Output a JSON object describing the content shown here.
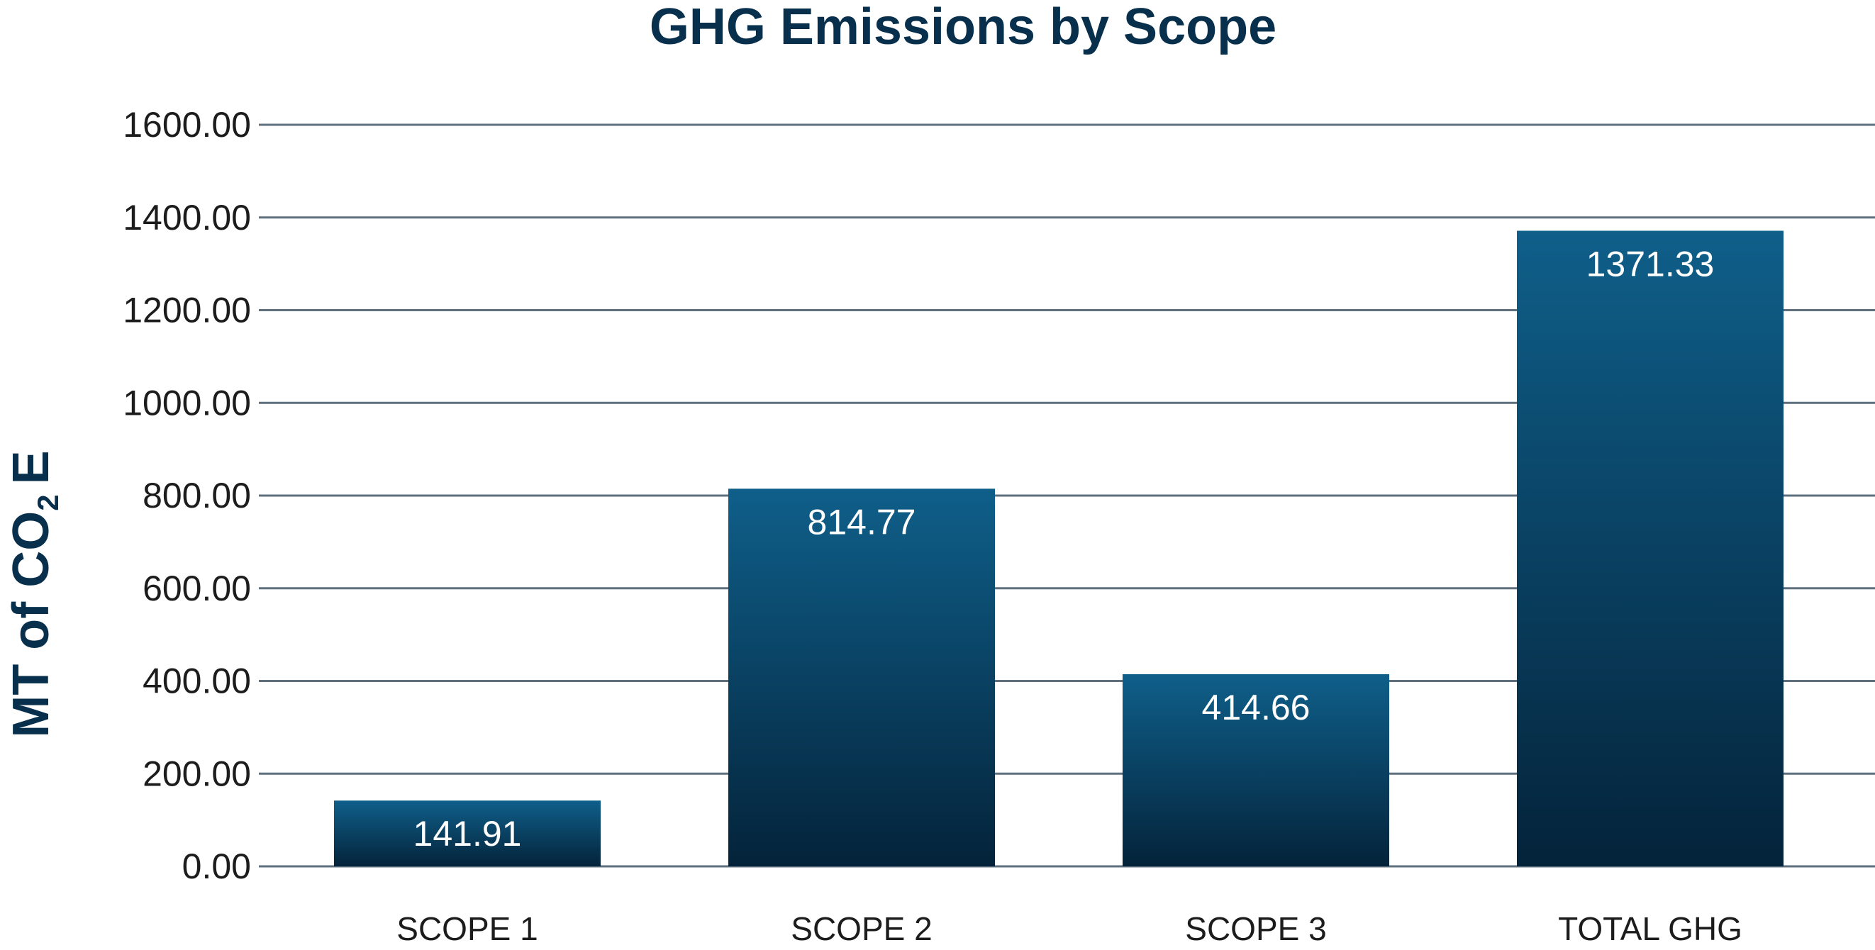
{
  "chart_data": {
    "type": "bar",
    "title": "GHG Emissions by Scope",
    "ylabel": "MT of CO",
    "ylabel_subscript": "2",
    "ylabel_suffix": "E",
    "xlabel": "",
    "categories": [
      "SCOPE 1",
      "SCOPE 2",
      "SCOPE 3",
      "TOTAL GHG"
    ],
    "values": [
      141.91,
      814.77,
      414.66,
      1371.33
    ],
    "value_labels": [
      "141.91",
      "814.77",
      "414.66",
      "1371.33"
    ],
    "ylim": [
      0,
      1600
    ],
    "y_ticks": [
      "0.00",
      "200.00",
      "400.00",
      "600.00",
      "800.00",
      "1000.00",
      "1200.00",
      "1400.00",
      "1600.00"
    ],
    "grid": true,
    "colors": {
      "bar_top": "#0f5f8a",
      "bar_bottom": "#04233a",
      "title": "#08304d",
      "grid": "#5e6f7e"
    }
  }
}
